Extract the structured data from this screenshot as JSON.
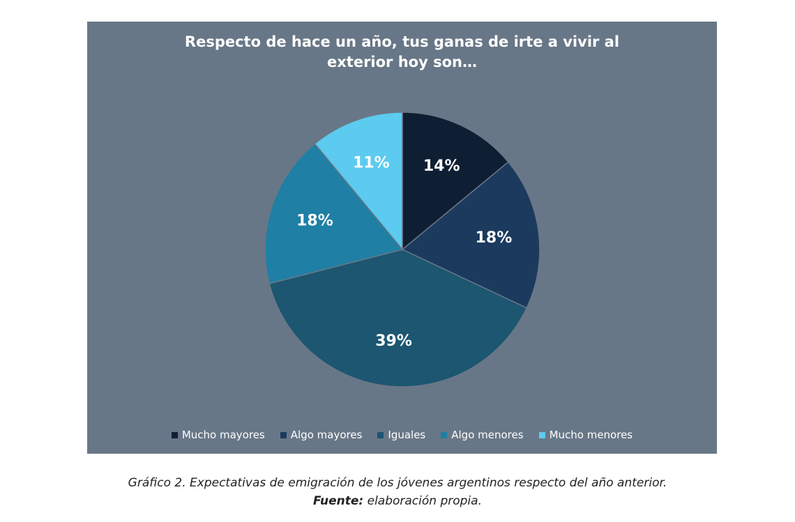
{
  "caption": {
    "figure_label": "Gráfico 2.",
    "figure_text": "Expectativas de emigración de los jóvenes argentinos respecto del año anterior.",
    "source_label": "Fuente:",
    "source_text": "elaboración propia."
  },
  "chart_data": {
    "type": "pie",
    "title_lines": [
      "Respecto de hace un año, tus ganas de irte a vivir al",
      "exterior hoy son…"
    ],
    "legend_position": "bottom",
    "slices": [
      {
        "name": "Mucho mayores",
        "value": 14,
        "label": "14%",
        "color": "#0f1f33"
      },
      {
        "name": "Algo mayores",
        "value": 18,
        "label": "18%",
        "color": "#1b3a5e"
      },
      {
        "name": "Iguales",
        "value": 39,
        "label": "39%",
        "color": "#1c5670"
      },
      {
        "name": "Algo menores",
        "value": 18,
        "label": "18%",
        "color": "#1f7fa5"
      },
      {
        "name": "Mucho menores",
        "value": 11,
        "label": "11%",
        "color": "#5ccbef"
      }
    ]
  }
}
